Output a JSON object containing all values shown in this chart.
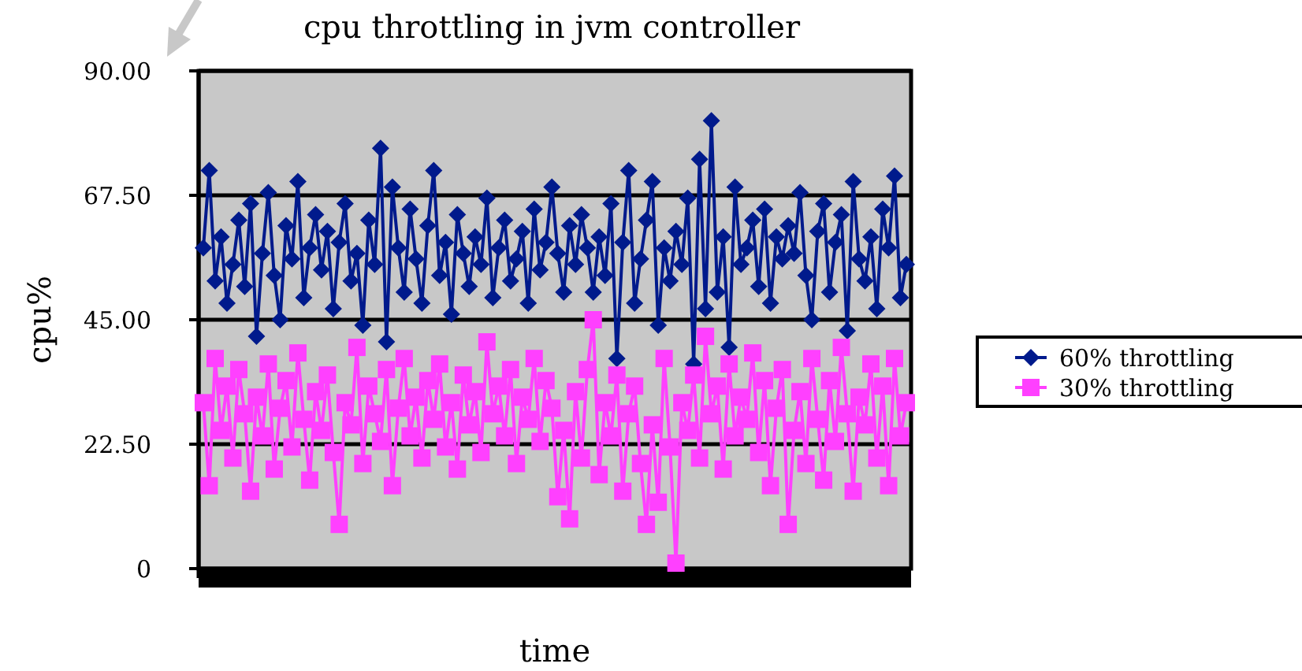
{
  "chart_data": {
    "type": "line",
    "title": "cpu throttling in jvm controller",
    "xlabel": "time",
    "ylabel": "cpu%",
    "categories": [
      null,
      null,
      null,
      null,
      null,
      null,
      null,
      null,
      null,
      null,
      null,
      null,
      null,
      null,
      null,
      null,
      null,
      null,
      null,
      null,
      null,
      null,
      null,
      null,
      null,
      null,
      null,
      null,
      null,
      null,
      null,
      null,
      null,
      null,
      null,
      null,
      null,
      null,
      null,
      null,
      null,
      null,
      null,
      null,
      null,
      null,
      null,
      null,
      null,
      null,
      null,
      null,
      null,
      null,
      null,
      null,
      null,
      null,
      null,
      null,
      null,
      null,
      null,
      null,
      null,
      null,
      null,
      null,
      null,
      null,
      null,
      null,
      null,
      null,
      null,
      null,
      null,
      null,
      null,
      null,
      null,
      null,
      null,
      null,
      null,
      null,
      null,
      null,
      null,
      null,
      null,
      null,
      null,
      null,
      null,
      null,
      null,
      null,
      null,
      null,
      null,
      null,
      null,
      null,
      null,
      null,
      null,
      null,
      null,
      null,
      null,
      null,
      null,
      null,
      null,
      null,
      null,
      null,
      null,
      null
    ],
    "series": [
      {
        "name": "60% throttling",
        "color": "#001a8c",
        "marker": "diamond",
        "values": [
          58,
          72,
          52,
          60,
          48,
          55,
          63,
          51,
          66,
          42,
          57,
          68,
          53,
          45,
          62,
          56,
          70,
          49,
          58,
          64,
          54,
          61,
          47,
          59,
          66,
          52,
          57,
          44,
          63,
          55,
          76,
          41,
          69,
          58,
          50,
          65,
          56,
          48,
          62,
          72,
          53,
          59,
          46,
          64,
          57,
          51,
          60,
          55,
          67,
          49,
          58,
          63,
          52,
          56,
          61,
          48,
          65,
          54,
          59,
          69,
          57,
          50,
          62,
          55,
          64,
          58,
          50,
          60,
          53,
          66,
          38,
          59,
          72,
          48,
          56,
          63,
          70,
          44,
          58,
          52,
          61,
          55,
          67,
          37,
          74,
          47,
          81,
          50,
          60,
          40,
          69,
          55,
          58,
          63,
          51,
          65,
          48,
          60,
          56,
          62,
          57,
          68,
          53,
          45,
          61,
          66,
          50,
          59,
          64,
          43,
          70,
          56,
          52,
          60,
          47,
          65,
          58,
          71,
          49,
          55
        ]
      },
      {
        "name": "30% throttling",
        "color": "#ff40ff",
        "marker": "square",
        "values": [
          30,
          15,
          38,
          25,
          33,
          20,
          36,
          28,
          14,
          31,
          24,
          37,
          18,
          29,
          34,
          22,
          39,
          27,
          16,
          32,
          25,
          35,
          21,
          8,
          30,
          26,
          40,
          19,
          33,
          28,
          23,
          36,
          15,
          29,
          38,
          24,
          31,
          20,
          34,
          27,
          37,
          22,
          30,
          18,
          35,
          26,
          32,
          21,
          41,
          28,
          33,
          24,
          36,
          19,
          31,
          27,
          38,
          23,
          34,
          29,
          13,
          25,
          9,
          32,
          20,
          36,
          45,
          17,
          30,
          24,
          35,
          14,
          28,
          33,
          19,
          8,
          26,
          12,
          38,
          22,
          1,
          30,
          25,
          35,
          20,
          42,
          28,
          33,
          18,
          37,
          24,
          31,
          27,
          39,
          21,
          34,
          15,
          29,
          36,
          8,
          25,
          32,
          19,
          38,
          27,
          16,
          34,
          23,
          40,
          28,
          14,
          31,
          26,
          37,
          20,
          33,
          15,
          38,
          24,
          30
        ]
      }
    ],
    "ylim": [
      0,
      90
    ],
    "yticks": [
      {
        "value": 0,
        "label": "0"
      },
      {
        "value": 22.5,
        "label": "22.50"
      },
      {
        "value": 45,
        "label": "45.00"
      },
      {
        "value": 67.5,
        "label": "67.50"
      },
      {
        "value": 90,
        "label": "90.00"
      }
    ],
    "grid": "y",
    "legend": "right",
    "tick_labels": "y",
    "line_style": "solid"
  }
}
